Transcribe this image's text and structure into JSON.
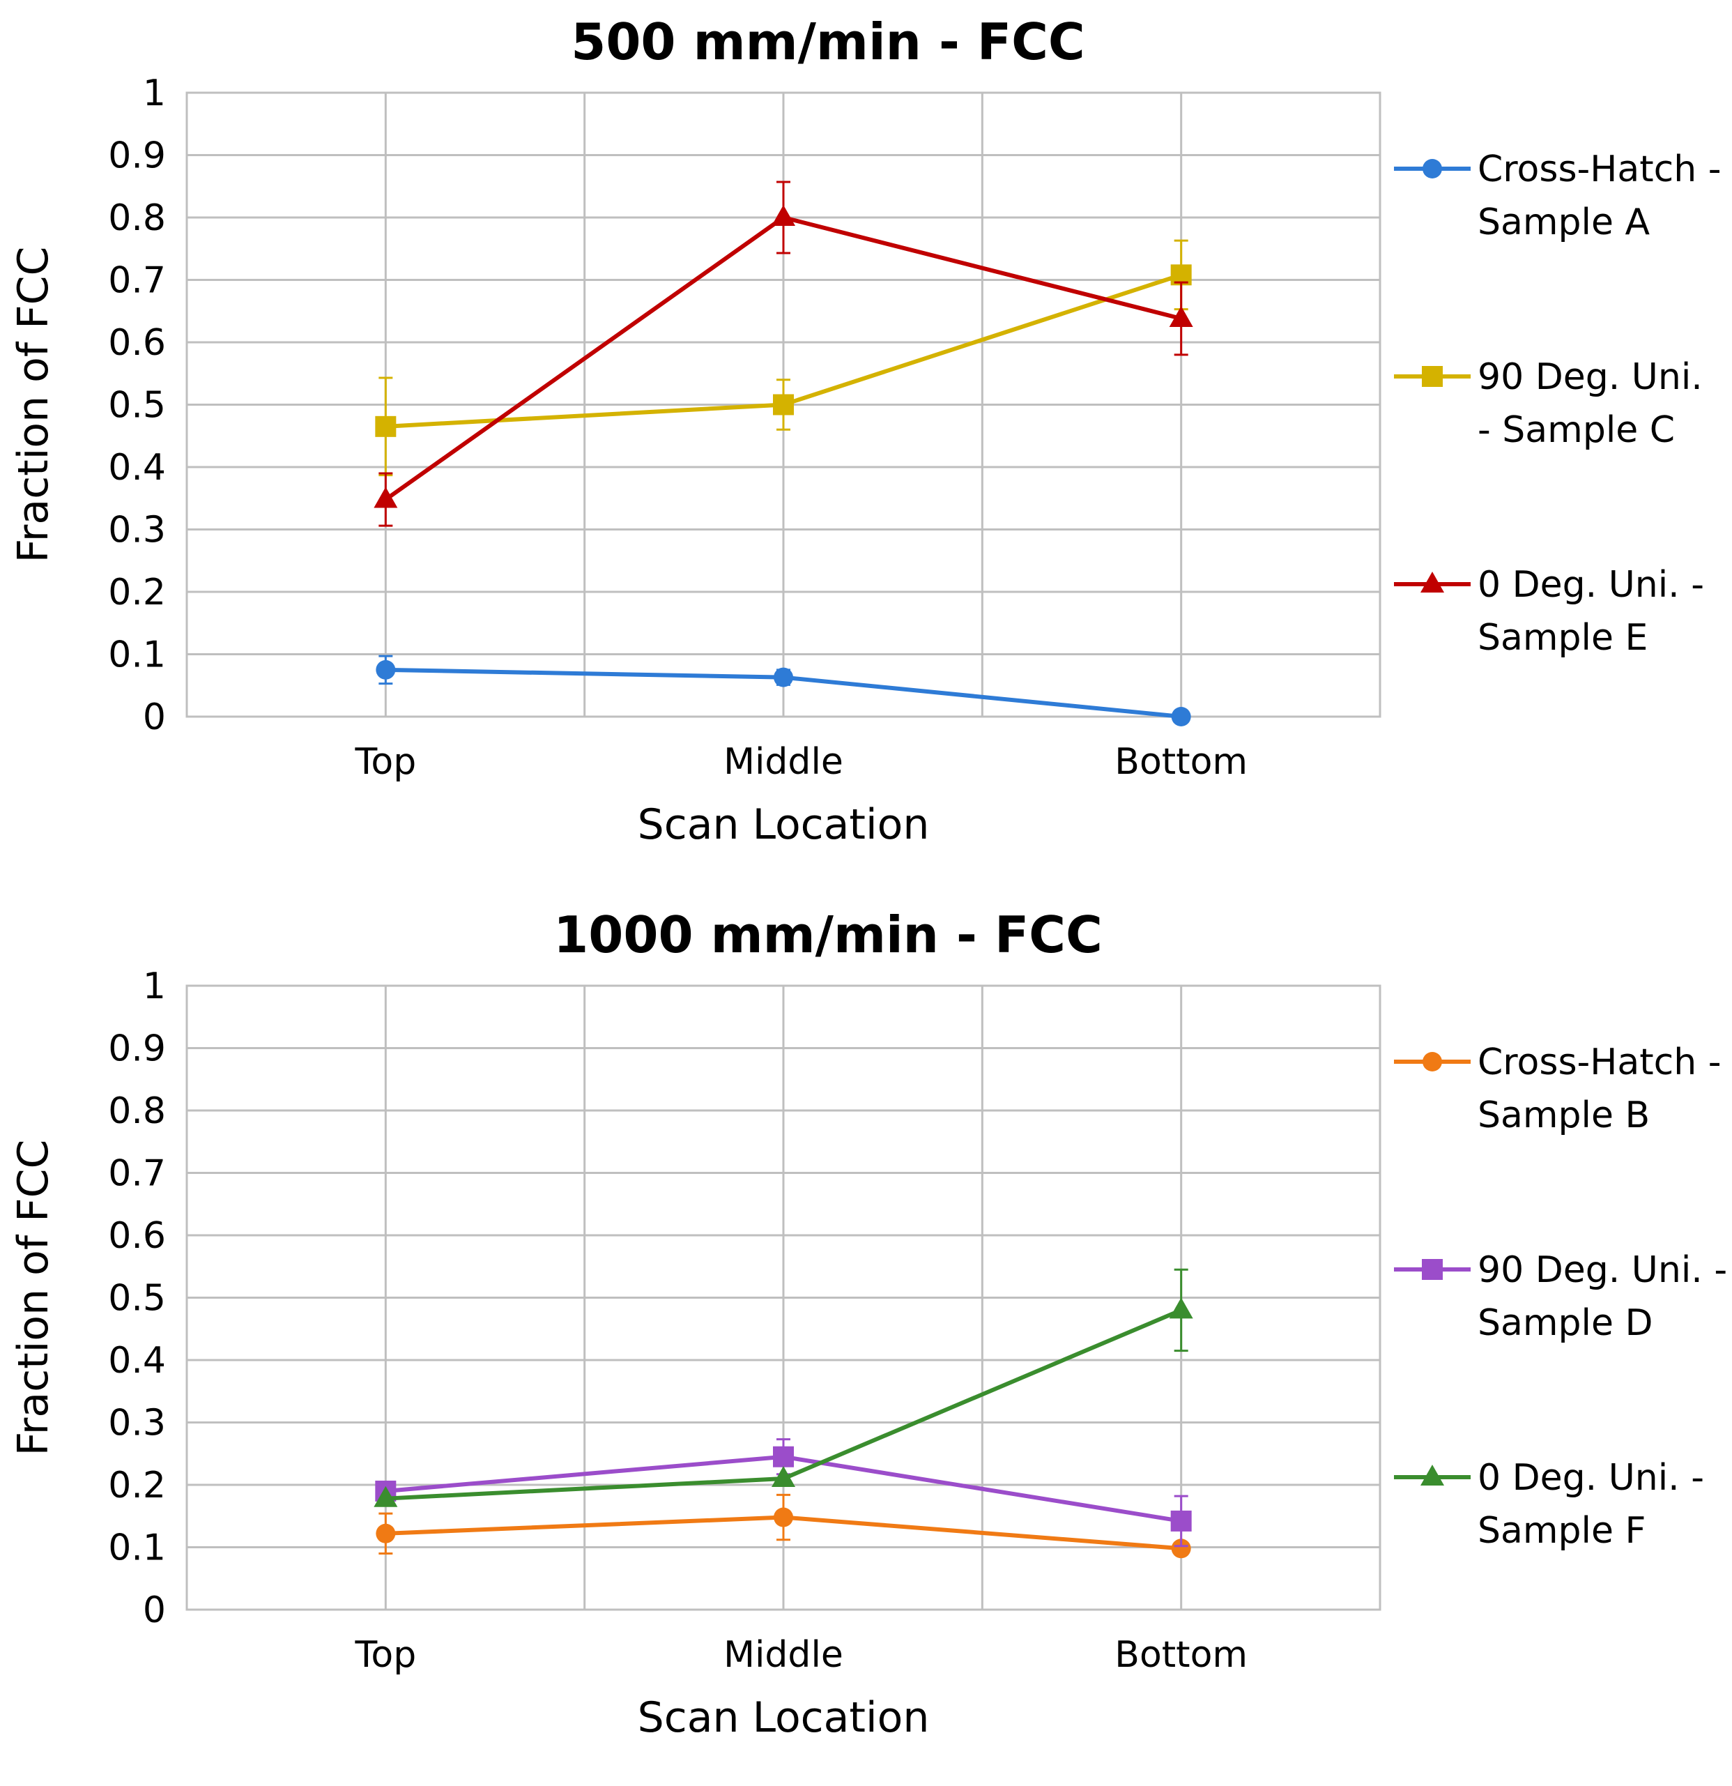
{
  "chart_data": [
    {
      "type": "line",
      "title": "500 mm/min - FCC",
      "xlabel": "Scan Location",
      "ylabel": "Fraction of FCC",
      "categories": [
        "Top",
        "Middle",
        "Bottom"
      ],
      "ylim": [
        0,
        1
      ],
      "yticks": [
        0,
        0.1,
        0.2,
        0.3,
        0.4,
        0.5,
        0.6,
        0.7,
        0.8,
        0.9,
        1
      ],
      "ytick_labels": [
        "0",
        "0.1",
        "0.2",
        "0.3",
        "0.4",
        "0.5",
        "0.6",
        "0.7",
        "0.8",
        "0.9",
        "1"
      ],
      "grid": true,
      "legend_position": "right",
      "series": [
        {
          "name": "Cross-Hatch - Sample A",
          "legend_lines": [
            "Cross-Hatch -",
            "Sample A"
          ],
          "color": "#2E7BD6",
          "marker": "circle",
          "values": [
            0.075,
            0.063,
            0.0
          ],
          "errors": [
            0.022,
            0.012,
            0.0
          ]
        },
        {
          "name": "90 Deg. Uni. - Sample C",
          "legend_lines": [
            "90 Deg. Uni.",
            "- Sample C"
          ],
          "color": "#D4B200",
          "marker": "square",
          "values": [
            0.465,
            0.5,
            0.708
          ],
          "errors": [
            0.078,
            0.04,
            0.055
          ]
        },
        {
          "name": "0 Deg. Uni. - Sample E",
          "legend_lines": [
            "0 Deg. Uni. -",
            "Sample E"
          ],
          "color": "#C00000",
          "marker": "triangle",
          "values": [
            0.348,
            0.8,
            0.638
          ],
          "errors": [
            0.042,
            0.057,
            0.058
          ]
        }
      ]
    },
    {
      "type": "line",
      "title": "1000 mm/min - FCC",
      "xlabel": "Scan Location",
      "ylabel": "Fraction of FCC",
      "categories": [
        "Top",
        "Middle",
        "Bottom"
      ],
      "ylim": [
        0,
        1
      ],
      "yticks": [
        0,
        0.1,
        0.2,
        0.3,
        0.4,
        0.5,
        0.6,
        0.7,
        0.8,
        0.9,
        1
      ],
      "ytick_labels": [
        "0",
        "0.1",
        "0.2",
        "0.3",
        "0.4",
        "0.5",
        "0.6",
        "0.7",
        "0.8",
        "0.9",
        "1"
      ],
      "grid": true,
      "legend_position": "right",
      "series": [
        {
          "name": "Cross-Hatch - Sample B",
          "legend_lines": [
            "Cross-Hatch -",
            "Sample B"
          ],
          "color": "#F07A14",
          "marker": "circle",
          "values": [
            0.122,
            0.148,
            0.098
          ],
          "errors": [
            0.032,
            0.036,
            0.0
          ]
        },
        {
          "name": "90 Deg. Uni. - Sample D",
          "legend_lines": [
            "90 Deg. Uni. -",
            "Sample D"
          ],
          "color": "#9B4DCA",
          "marker": "square",
          "values": [
            0.19,
            0.245,
            0.142
          ],
          "errors": [
            0.0,
            0.028,
            0.04
          ]
        },
        {
          "name": "0 Deg. Uni. - Sample F",
          "legend_lines": [
            "0 Deg. Uni. -",
            "Sample F"
          ],
          "color": "#3A8D2E",
          "marker": "triangle",
          "values": [
            0.178,
            0.21,
            0.48
          ],
          "errors": [
            0.0,
            0.0,
            0.065
          ]
        }
      ]
    }
  ]
}
